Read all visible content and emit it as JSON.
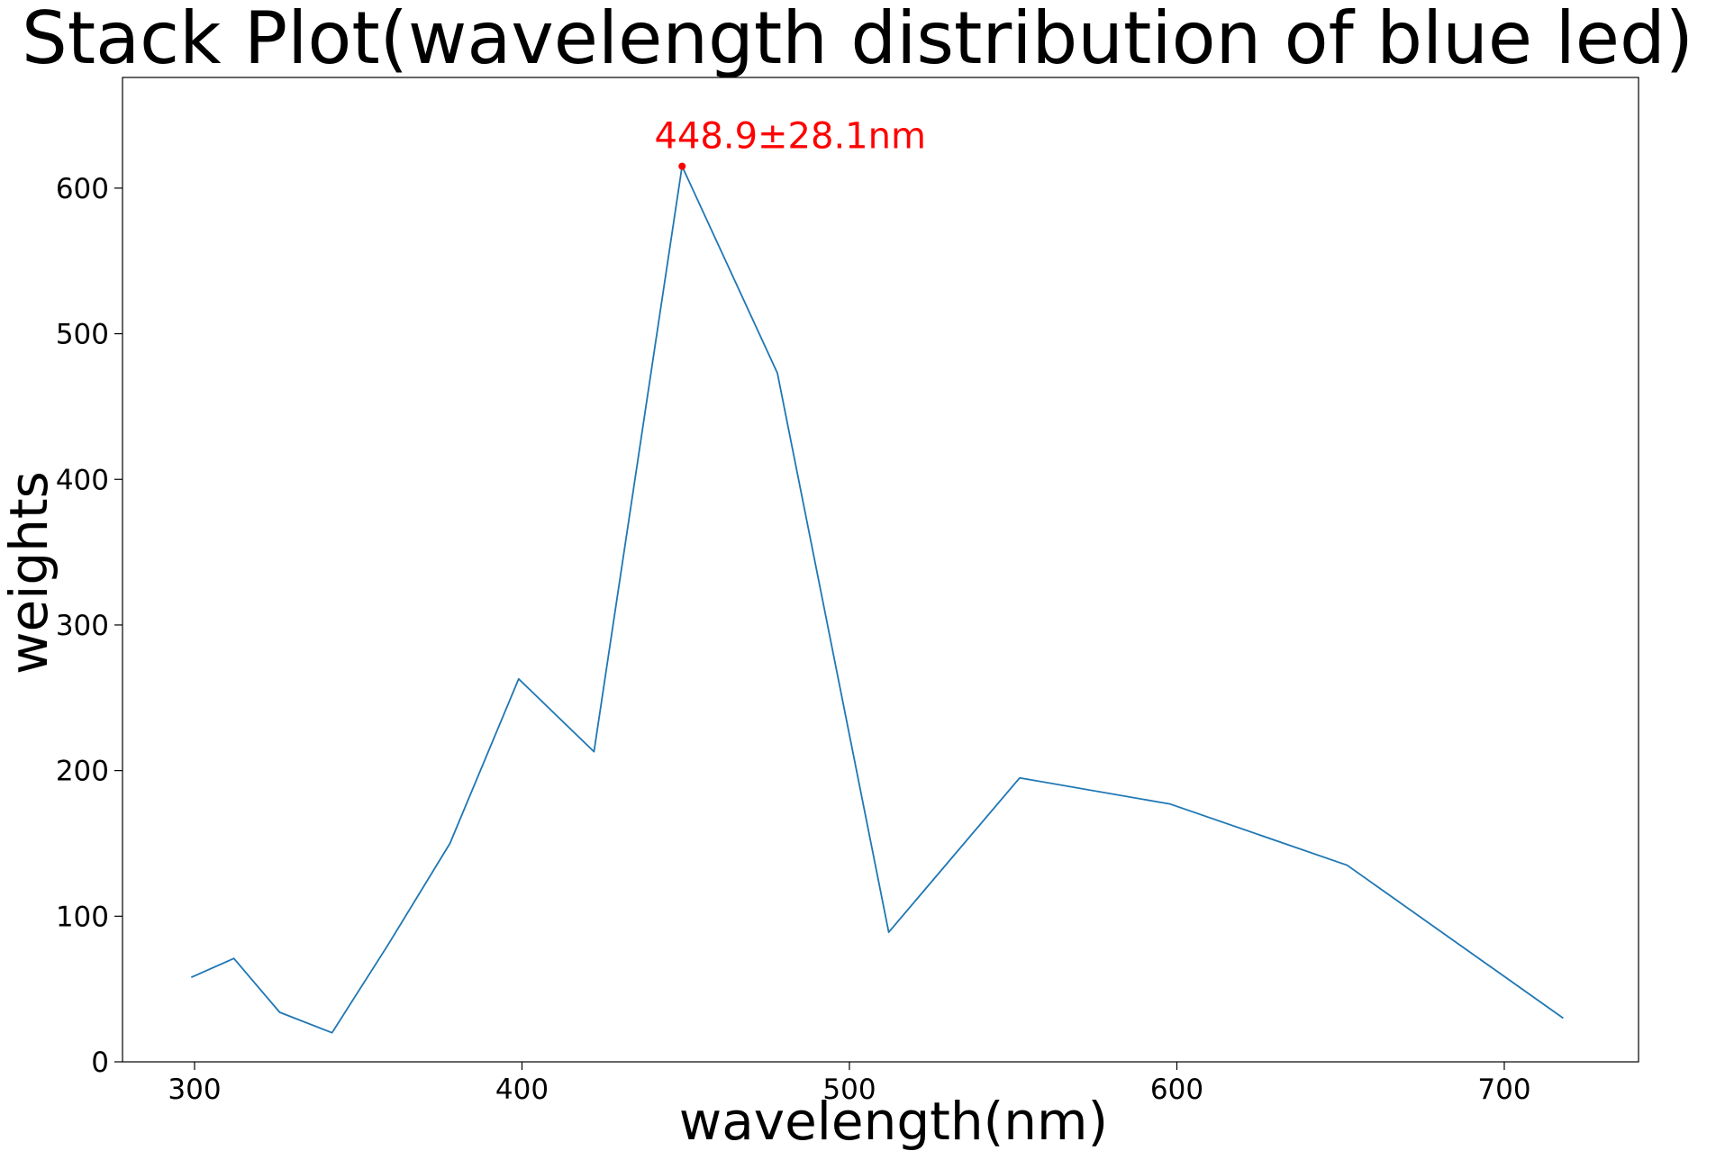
{
  "chart_data": {
    "type": "line",
    "title": "Stack Plot(wavelength distribution of blue led)",
    "xlabel": "wavelength(nm)",
    "ylabel": "weights",
    "xlim": [
      278,
      741
    ],
    "ylim": [
      0,
      676
    ],
    "xticks": [
      300,
      400,
      500,
      600,
      700
    ],
    "yticks": [
      0,
      100,
      200,
      300,
      400,
      500,
      600
    ],
    "grid": false,
    "legend": "none",
    "series": [
      {
        "color": "#1f77b4",
        "x": [
          299,
          312,
          326,
          342,
          359,
          378,
          399,
          422,
          448.9,
          478,
          512,
          552,
          598,
          652,
          718
        ],
        "y": [
          58,
          71,
          34,
          20,
          80,
          150,
          263,
          213,
          615,
          473,
          89,
          195,
          177,
          135,
          30
        ]
      }
    ],
    "annotation": {
      "text": "448.9±28.1nm",
      "x": 448.9,
      "y": 615,
      "color": "#ff0000"
    }
  }
}
